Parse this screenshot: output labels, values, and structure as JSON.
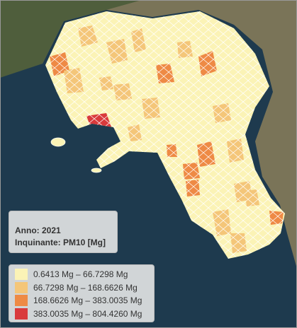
{
  "info": {
    "year": "Anno: 2021",
    "pollutant": "Inquinante: PM10 [Mg]"
  },
  "legend": [
    {
      "label": "0.6413 Mg – 66.7298 Mg",
      "color": "#fbf3b6"
    },
    {
      "label": "66.7298 Mg – 168.6626 Mg",
      "color": "#f4c679"
    },
    {
      "label": "168.6626 Mg – 383.0035 Mg",
      "color": "#ee8a45"
    },
    {
      "label": "383.0035 Mg – 804.4260 Mg",
      "color": "#d93a3c"
    }
  ]
}
